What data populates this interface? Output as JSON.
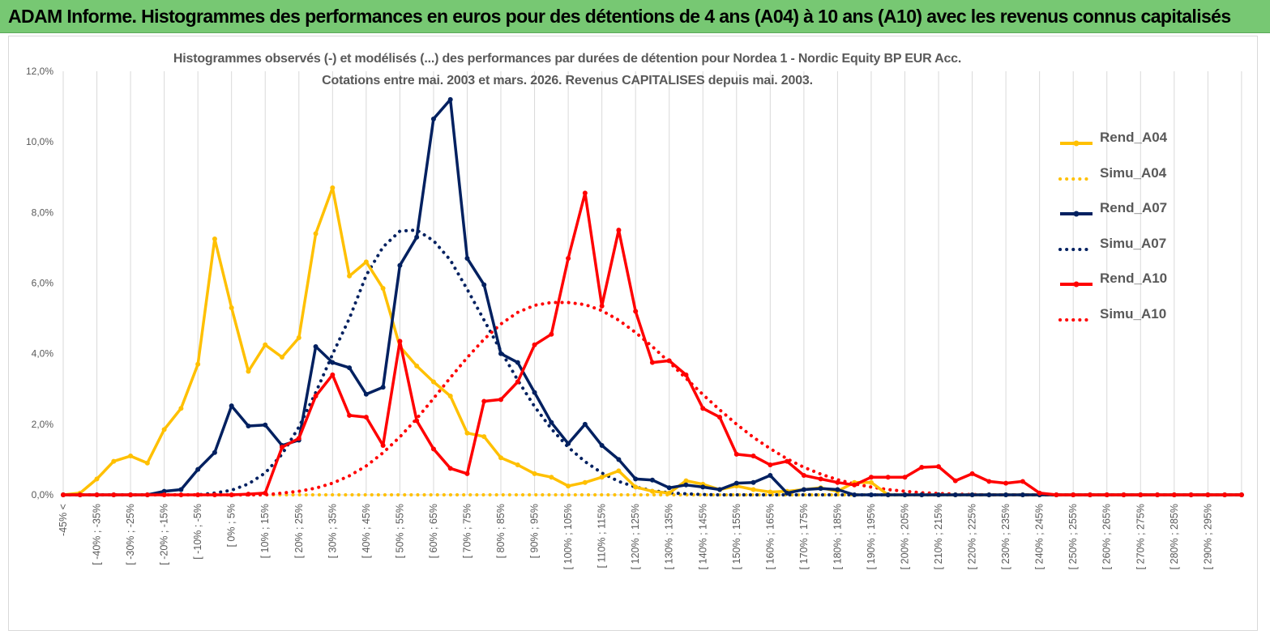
{
  "banner": {
    "title": "ADAM Informe. Histogrammes des performances en euros pour des détentions de 4 ans (A04) à 10 ans (A10) avec les revenus connus capitalisés"
  },
  "colors": {
    "banner_bg": "#77c873",
    "grid": "#d9d9d9",
    "axis_text": "#595959",
    "A04": "#ffc000",
    "A07": "#002060",
    "A10": "#ff0000"
  },
  "chart_data": {
    "type": "line",
    "title_line1": "Histogrammes observés (-) et modélisés (...) des performances par durées de détention pour Nordea 1 - Nordic Equity BP EUR Acc.",
    "title_line2": "Cotations entre mai. 2003 et mars. 2026. Revenus CAPITALISES depuis mai. 2003.",
    "ylim": [
      0,
      12
    ],
    "y_ticks": [
      0,
      2,
      4,
      6,
      8,
      10,
      12
    ],
    "y_tick_labels": [
      "0,0%",
      "2,0%",
      "4,0%",
      "6,0%",
      "8,0%",
      "10,0%",
      "12,0%"
    ],
    "x_labels": [
      "-45% <",
      "[ -40% ; -35%",
      "[ -30% ; -25%",
      "[ -20% ; -15%",
      "[ -10% ; -5%",
      "[ 0% ; 5%",
      "[ 10% ; 15%",
      "[ 20% ; 25%",
      "[ 30% ; 35%",
      "[ 40% ; 45%",
      "[ 50% ; 55%",
      "[ 60% ; 65%",
      "[ 70% ; 75%",
      "[ 80% ; 85%",
      "[ 90% ; 95%",
      "[ 100% ; 105%",
      "[ 110% ; 115%",
      "[ 120% ; 125%",
      "[ 130% ; 135%",
      "[ 140% ; 145%",
      "[ 150% ; 155%",
      "[ 160% ; 165%",
      "[ 170% ; 175%",
      "[ 180% ; 185%",
      "[ 190% ; 195%",
      "[ 200% ; 205%",
      "[ 210% ; 215%",
      "[ 220% ; 225%",
      "[ 230% ; 235%",
      "[ 240% ; 245%",
      "[ 250% ; 255%",
      "[ 260% ; 265%",
      "[ 270% ; 275%",
      "[ 280% ; 285%",
      "[ 290% ; 295%"
    ],
    "legend": [
      "Rend_A04",
      "Simu_A04",
      "Rend_A07",
      "Simu_A07",
      "Rend_A10",
      "Simu_A10"
    ],
    "series": [
      {
        "name": "Rend_A04",
        "color": "#ffc000",
        "style": "solid",
        "markers": true,
        "values": [
          0,
          0.05,
          0.45,
          0.95,
          1.1,
          0.9,
          1.85,
          2.45,
          3.7,
          7.25,
          5.3,
          3.5,
          4.25,
          3.9,
          4.45,
          7.4,
          8.7,
          6.2,
          6.6,
          5.85,
          4.2,
          3.65,
          3.2,
          2.8,
          1.75,
          1.65,
          1.05,
          0.85,
          0.6,
          0.5,
          0.25,
          0.35,
          0.5,
          0.68,
          0.22,
          0.1,
          0.05,
          0.4,
          0.3,
          0.15,
          0.25,
          0.15,
          0.08,
          0.1,
          0.15,
          0.2,
          0.1,
          0.35,
          0.35,
          0,
          0,
          0,
          0,
          0,
          0,
          0,
          0,
          0,
          0,
          0,
          0,
          0,
          0,
          0,
          0,
          0,
          0,
          0,
          0,
          0,
          0
        ]
      },
      {
        "name": "Simu_A04",
        "color": "#ffc000",
        "style": "dotted",
        "markers": false,
        "values": [
          0,
          0,
          0,
          0,
          0,
          0,
          0,
          0,
          0,
          0,
          0,
          0,
          0,
          0,
          0,
          0,
          0,
          0,
          0,
          0,
          0,
          0,
          0,
          0,
          0,
          0,
          0,
          0,
          0,
          0,
          0,
          0,
          0,
          0,
          0,
          0,
          0,
          0,
          0,
          0,
          0,
          0,
          0,
          0,
          0,
          0,
          0,
          0,
          0,
          0,
          0,
          0,
          0,
          0,
          0,
          0,
          0,
          0,
          0,
          0,
          0,
          0,
          0,
          0,
          0,
          0,
          0,
          0,
          0,
          0,
          0
        ]
      },
      {
        "name": "Rend_A07",
        "color": "#002060",
        "style": "solid",
        "markers": true,
        "values": [
          0,
          0,
          0,
          0,
          0,
          0,
          0.1,
          0.15,
          0.72,
          1.2,
          2.52,
          1.95,
          1.98,
          1.4,
          1.55,
          4.2,
          3.75,
          3.6,
          2.85,
          3.05,
          6.5,
          7.3,
          10.65,
          11.2,
          6.7,
          5.95,
          4.0,
          3.75,
          2.9,
          2.05,
          1.45,
          2.0,
          1.4,
          1.0,
          0.45,
          0.42,
          0.2,
          0.28,
          0.22,
          0.15,
          0.33,
          0.35,
          0.55,
          0.05,
          0.15,
          0.18,
          0.15,
          0,
          0,
          0,
          0,
          0,
          0,
          0,
          0,
          0,
          0,
          0,
          0,
          0,
          0,
          0,
          0,
          0,
          0,
          0,
          0,
          0,
          0,
          0,
          0
        ]
      },
      {
        "name": "Simu_A07",
        "color": "#002060",
        "style": "dotted",
        "markers": false,
        "values": [
          0,
          0,
          0,
          0,
          0,
          0,
          0,
          0,
          0,
          0.05,
          0.13,
          0.31,
          0.62,
          1.15,
          1.92,
          2.9,
          3.98,
          5.0,
          6.22,
          7.02,
          7.47,
          7.5,
          7.2,
          6.65,
          5.82,
          4.95,
          4.08,
          3.25,
          2.5,
          1.87,
          1.35,
          0.94,
          0.62,
          0.38,
          0.22,
          0.12,
          0.06,
          0.03,
          0.01,
          0,
          0,
          0,
          0,
          0,
          0,
          0,
          0,
          0,
          0,
          0,
          0,
          0,
          0,
          0,
          0,
          0,
          0,
          0,
          0,
          0,
          0,
          0,
          0,
          0,
          0,
          0,
          0,
          0,
          0,
          0,
          0
        ]
      },
      {
        "name": "Rend_A10",
        "color": "#ff0000",
        "style": "solid",
        "markers": true,
        "values": [
          0,
          0,
          0,
          0,
          0,
          0,
          0,
          0,
          0,
          0,
          0,
          0.02,
          0.05,
          1.35,
          1.6,
          2.8,
          3.4,
          2.25,
          2.2,
          1.4,
          4.35,
          2.1,
          1.3,
          0.75,
          0.6,
          2.65,
          2.7,
          3.2,
          4.25,
          4.55,
          6.7,
          8.55,
          5.35,
          7.5,
          5.2,
          3.75,
          3.8,
          3.4,
          2.45,
          2.2,
          1.15,
          1.1,
          0.85,
          0.95,
          0.55,
          0.45,
          0.35,
          0.28,
          0.5,
          0.5,
          0.5,
          0.78,
          0.8,
          0.4,
          0.6,
          0.38,
          0.33,
          0.38,
          0.05,
          0,
          0,
          0,
          0,
          0,
          0,
          0,
          0,
          0,
          0,
          0,
          0
        ]
      },
      {
        "name": "Simu_A10",
        "color": "#ff0000",
        "style": "dotted",
        "markers": false,
        "values": [
          0,
          0,
          0,
          0,
          0,
          0,
          0,
          0,
          0,
          0,
          0,
          0,
          0,
          0.05,
          0.1,
          0.19,
          0.33,
          0.54,
          0.82,
          1.19,
          1.64,
          2.16,
          2.73,
          3.32,
          3.89,
          4.41,
          4.84,
          5.17,
          5.37,
          5.45,
          5.45,
          5.39,
          5.22,
          4.95,
          4.6,
          4.2,
          3.76,
          3.3,
          2.84,
          2.41,
          2.0,
          1.63,
          1.31,
          1.02,
          0.78,
          0.59,
          0.43,
          0.31,
          0.22,
          0.15,
          0.1,
          0.06,
          0.04,
          0.02,
          0.01,
          0,
          0,
          0,
          0,
          0,
          0,
          0,
          0,
          0,
          0,
          0,
          0,
          0,
          0,
          0,
          0
        ]
      }
    ]
  }
}
